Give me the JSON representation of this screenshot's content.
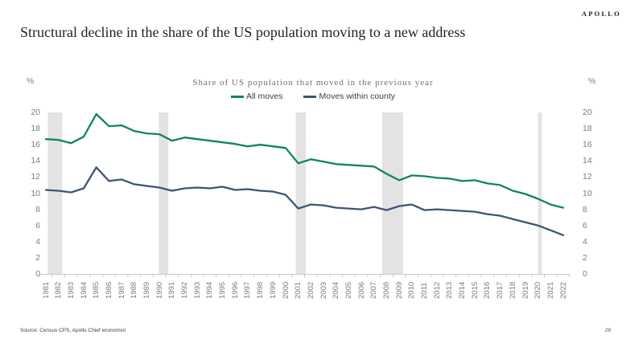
{
  "header": {
    "logo": "APOLLO",
    "title": "Structural decline in the share of the US population moving to a new address"
  },
  "chart_data": {
    "type": "line",
    "title": "Share of US population that moved in the previous year",
    "unit_label_left": "%",
    "unit_label_right": "%",
    "x": [
      1981,
      1982,
      1983,
      1984,
      1985,
      1986,
      1987,
      1988,
      1989,
      1990,
      1991,
      1992,
      1993,
      1994,
      1995,
      1996,
      1997,
      1998,
      1999,
      2000,
      2001,
      2002,
      2003,
      2004,
      2005,
      2006,
      2007,
      2008,
      2009,
      2010,
      2011,
      2012,
      2013,
      2014,
      2015,
      2016,
      2017,
      2018,
      2019,
      2020,
      2021,
      2022
    ],
    "series": [
      {
        "name": "All moves",
        "color": "#0e8467",
        "values": [
          16.7,
          16.6,
          16.2,
          17.0,
          19.8,
          18.3,
          18.4,
          17.7,
          17.4,
          17.3,
          16.5,
          16.9,
          16.7,
          16.5,
          16.3,
          16.1,
          15.8,
          16.0,
          15.8,
          15.6,
          13.7,
          14.2,
          13.9,
          13.6,
          13.5,
          13.4,
          13.3,
          12.4,
          11.6,
          12.2,
          12.1,
          11.9,
          11.8,
          11.5,
          11.6,
          11.2,
          11.0,
          10.3,
          9.9,
          9.3,
          8.6,
          8.2
        ]
      },
      {
        "name": "Moves within county",
        "color": "#3e5477",
        "values": [
          10.4,
          10.3,
          10.1,
          10.6,
          13.2,
          11.5,
          11.7,
          11.1,
          10.9,
          10.7,
          10.3,
          10.6,
          10.7,
          10.6,
          10.8,
          10.4,
          10.5,
          10.3,
          10.2,
          9.8,
          8.1,
          8.6,
          8.5,
          8.2,
          8.1,
          8.0,
          8.3,
          7.9,
          8.4,
          8.6,
          7.9,
          8.0,
          7.9,
          7.8,
          7.7,
          7.4,
          7.2,
          6.8,
          6.4,
          6.0,
          5.4,
          4.8
        ]
      }
    ],
    "ylim": [
      0,
      20
    ],
    "yticks": [
      0,
      2,
      4,
      6,
      8,
      10,
      12,
      14,
      16,
      18,
      20
    ],
    "grid": false,
    "legend_position": "top",
    "recession_bands": [
      [
        1981.15,
        1982.3
      ],
      [
        1989.95,
        1990.7
      ],
      [
        2000.8,
        2001.6
      ],
      [
        2007.65,
        2009.3
      ],
      [
        2020.0,
        2020.3
      ]
    ],
    "band_color": "#e3e3e3",
    "axis_color": "#c9c9c9"
  },
  "footer": {
    "source": "Source: Census CPS, Apollo Chief economist",
    "page_number": "29"
  }
}
